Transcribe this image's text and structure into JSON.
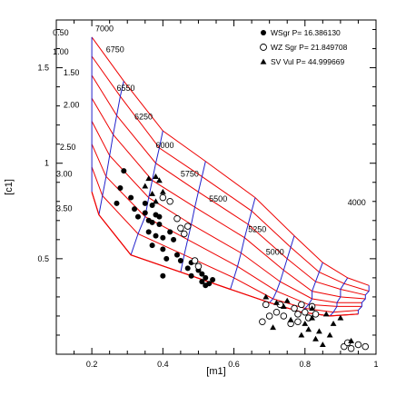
{
  "chart_data": {
    "type": "scatter",
    "xlabel": "[m1]",
    "ylabel": "[c1]",
    "xlim": [
      0.1,
      1.0
    ],
    "ylim": [
      0.0,
      1.75
    ],
    "xticks": [
      0.2,
      0.4,
      0.6,
      0.8,
      1.0
    ],
    "xtick_labels": [
      "0.2",
      "0.4",
      "0.6",
      "0.8",
      "1"
    ],
    "yticks": [
      0.5,
      1.0,
      1.5
    ],
    "ytick_labels": [
      "0.5",
      "1",
      "1.5"
    ],
    "grid": false,
    "legend_position": "top-right",
    "series": [
      {
        "name": "WSgr P= 16.386130",
        "marker": "filled-circle",
        "color": "#000000",
        "points": [
          [
            0.29,
            0.96
          ],
          [
            0.28,
            0.87
          ],
          [
            0.27,
            0.79
          ],
          [
            0.31,
            0.82
          ],
          [
            0.32,
            0.76
          ],
          [
            0.33,
            0.72
          ],
          [
            0.35,
            0.79
          ],
          [
            0.35,
            0.74
          ],
          [
            0.36,
            0.7
          ],
          [
            0.37,
            0.78
          ],
          [
            0.37,
            0.69
          ],
          [
            0.38,
            0.73
          ],
          [
            0.39,
            0.72
          ],
          [
            0.39,
            0.68
          ],
          [
            0.36,
            0.64
          ],
          [
            0.38,
            0.62
          ],
          [
            0.37,
            0.57
          ],
          [
            0.4,
            0.61
          ],
          [
            0.4,
            0.55
          ],
          [
            0.41,
            0.5
          ],
          [
            0.42,
            0.64
          ],
          [
            0.43,
            0.6
          ],
          [
            0.44,
            0.52
          ],
          [
            0.45,
            0.49
          ],
          [
            0.48,
            0.48
          ],
          [
            0.47,
            0.45
          ],
          [
            0.5,
            0.44
          ],
          [
            0.48,
            0.41
          ],
          [
            0.51,
            0.42
          ],
          [
            0.51,
            0.38
          ],
          [
            0.52,
            0.4
          ],
          [
            0.53,
            0.37
          ],
          [
            0.52,
            0.36
          ],
          [
            0.54,
            0.39
          ],
          [
            0.4,
            0.41
          ]
        ]
      },
      {
        "name": "WZ Sgr P= 21.849708",
        "marker": "open-circle",
        "color": "#000000",
        "points": [
          [
            0.4,
            0.82
          ],
          [
            0.42,
            0.8
          ],
          [
            0.45,
            0.66
          ],
          [
            0.46,
            0.63
          ],
          [
            0.47,
            0.67
          ],
          [
            0.49,
            0.49
          ],
          [
            0.5,
            0.46
          ],
          [
            0.44,
            0.71
          ],
          [
            0.68,
            0.17
          ],
          [
            0.7,
            0.2
          ],
          [
            0.72,
            0.22
          ],
          [
            0.73,
            0.26
          ],
          [
            0.74,
            0.2
          ],
          [
            0.76,
            0.16
          ],
          [
            0.77,
            0.24
          ],
          [
            0.78,
            0.21
          ],
          [
            0.79,
            0.26
          ],
          [
            0.8,
            0.22
          ],
          [
            0.81,
            0.19
          ],
          [
            0.82,
            0.25
          ],
          [
            0.83,
            0.21
          ],
          [
            0.69,
            0.26
          ],
          [
            0.91,
            0.04
          ],
          [
            0.92,
            0.06
          ],
          [
            0.93,
            0.03
          ],
          [
            0.95,
            0.05
          ],
          [
            0.97,
            0.04
          ],
          [
            0.78,
            0.17
          ]
        ]
      },
      {
        "name": "SV Vul P= 44.999669",
        "marker": "filled-triangle",
        "color": "#000000",
        "points": [
          [
            0.36,
            0.92
          ],
          [
            0.37,
            0.84
          ],
          [
            0.38,
            0.93
          ],
          [
            0.39,
            0.91
          ],
          [
            0.4,
            0.85
          ],
          [
            0.35,
            0.88
          ],
          [
            0.38,
            0.8
          ],
          [
            0.69,
            0.3
          ],
          [
            0.72,
            0.27
          ],
          [
            0.74,
            0.25
          ],
          [
            0.75,
            0.28
          ],
          [
            0.71,
            0.14
          ],
          [
            0.76,
            0.18
          ],
          [
            0.79,
            0.1
          ],
          [
            0.8,
            0.16
          ],
          [
            0.81,
            0.13
          ],
          [
            0.82,
            0.19
          ],
          [
            0.83,
            0.08
          ],
          [
            0.84,
            0.12
          ],
          [
            0.86,
            0.21
          ],
          [
            0.87,
            0.1
          ],
          [
            0.88,
            0.16
          ],
          [
            0.9,
            0.19
          ],
          [
            0.82,
            0.24
          ],
          [
            0.93,
            0.07
          ],
          [
            0.85,
            0.05
          ]
        ]
      }
    ],
    "grid_model": {
      "color": "#ee0000",
      "log_g_color": "#2222cc",
      "log_g_labels": [
        "0.50",
        "1.00",
        "1.50",
        "2.00",
        "2.50",
        "3.00",
        "3.50"
      ],
      "teff_labels": [
        "7000",
        "6750",
        "6550",
        "6250",
        "6000",
        "5750",
        "5500",
        "5250",
        "5000",
        "4000"
      ],
      "lines": [
        [
          [
            0.2,
            1.66
          ],
          [
            0.29,
            1.43
          ],
          [
            0.4,
            1.17
          ],
          [
            0.52,
            1.01
          ],
          [
            0.66,
            0.82
          ],
          [
            0.77,
            0.62
          ],
          [
            0.85,
            0.48
          ],
          [
            0.92,
            0.4
          ],
          [
            0.98,
            0.36
          ]
        ],
        [
          [
            0.2,
            1.56
          ],
          [
            0.28,
            1.35
          ],
          [
            0.39,
            1.08
          ],
          [
            0.51,
            0.93
          ],
          [
            0.65,
            0.75
          ],
          [
            0.76,
            0.56
          ],
          [
            0.84,
            0.43
          ],
          [
            0.91,
            0.37
          ],
          [
            0.98,
            0.33
          ]
        ],
        [
          [
            0.2,
            1.46
          ],
          [
            0.27,
            1.25
          ],
          [
            0.38,
            1.0
          ],
          [
            0.5,
            0.85
          ],
          [
            0.64,
            0.68
          ],
          [
            0.75,
            0.5
          ],
          [
            0.83,
            0.38
          ],
          [
            0.9,
            0.34
          ],
          [
            0.97,
            0.31
          ]
        ],
        [
          [
            0.2,
            1.34
          ],
          [
            0.26,
            1.15
          ],
          [
            0.37,
            0.91
          ],
          [
            0.49,
            0.77
          ],
          [
            0.63,
            0.61
          ],
          [
            0.74,
            0.44
          ],
          [
            0.82,
            0.33
          ],
          [
            0.9,
            0.3
          ],
          [
            0.97,
            0.29
          ]
        ],
        [
          [
            0.2,
            1.22
          ],
          [
            0.25,
            1.04
          ],
          [
            0.36,
            0.82
          ],
          [
            0.48,
            0.68
          ],
          [
            0.62,
            0.53
          ],
          [
            0.73,
            0.38
          ],
          [
            0.82,
            0.29
          ],
          [
            0.89,
            0.27
          ],
          [
            0.96,
            0.27
          ]
        ],
        [
          [
            0.2,
            1.1
          ],
          [
            0.24,
            0.93
          ],
          [
            0.35,
            0.72
          ],
          [
            0.47,
            0.6
          ],
          [
            0.61,
            0.46
          ],
          [
            0.72,
            0.33
          ],
          [
            0.81,
            0.26
          ],
          [
            0.89,
            0.25
          ],
          [
            0.96,
            0.25
          ]
        ],
        [
          [
            0.2,
            0.98
          ],
          [
            0.23,
            0.83
          ],
          [
            0.33,
            0.63
          ],
          [
            0.46,
            0.52
          ],
          [
            0.6,
            0.4
          ],
          [
            0.71,
            0.29
          ],
          [
            0.8,
            0.24
          ],
          [
            0.88,
            0.22
          ],
          [
            0.95,
            0.23
          ]
        ],
        [
          [
            0.2,
            0.85
          ],
          [
            0.22,
            0.73
          ],
          [
            0.31,
            0.52
          ],
          [
            0.45,
            0.43
          ],
          [
            0.59,
            0.34
          ],
          [
            0.7,
            0.27
          ],
          [
            0.79,
            0.22
          ],
          [
            0.87,
            0.2
          ],
          [
            0.95,
            0.21
          ]
        ]
      ]
    },
    "annotations": [
      {
        "text": "7000",
        "x": 0.21,
        "y": 1.69
      },
      {
        "text": "0.50",
        "x": 0.09,
        "y": 1.67
      },
      {
        "text": "1.00",
        "x": 0.09,
        "y": 1.57
      },
      {
        "text": "6750",
        "x": 0.24,
        "y": 1.58
      },
      {
        "text": "1.50",
        "x": 0.12,
        "y": 1.46
      },
      {
        "text": "6550",
        "x": 0.27,
        "y": 1.38
      },
      {
        "text": "2.00",
        "x": 0.12,
        "y": 1.29
      },
      {
        "text": "6250",
        "x": 0.32,
        "y": 1.23
      },
      {
        "text": "6000",
        "x": 0.38,
        "y": 1.08
      },
      {
        "text": "2.50",
        "x": 0.11,
        "y": 1.07
      },
      {
        "text": "5750",
        "x": 0.45,
        "y": 0.93
      },
      {
        "text": "3.00",
        "x": 0.1,
        "y": 0.93
      },
      {
        "text": "5500",
        "x": 0.53,
        "y": 0.8
      },
      {
        "text": "3.50",
        "x": 0.1,
        "y": 0.75
      },
      {
        "text": "5250",
        "x": 0.64,
        "y": 0.64
      },
      {
        "text": "5000",
        "x": 0.69,
        "y": 0.52
      },
      {
        "text": "4000",
        "x": 0.92,
        "y": 0.78
      }
    ]
  }
}
